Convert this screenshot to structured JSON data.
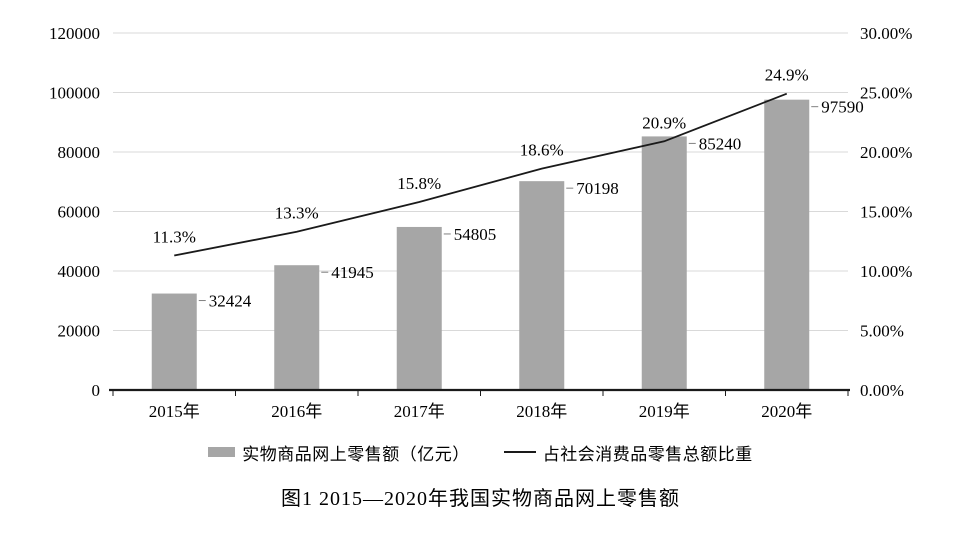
{
  "figure": {
    "caption": "图1  2015—2020年我国实物商品网上零售额"
  },
  "legend": [
    {
      "swatch": "bar-swatch",
      "label": "实物商品网上零售额（亿元）"
    },
    {
      "swatch": "line-swatch",
      "label": "占社会消费品零售总额比重"
    }
  ],
  "colors": {
    "bar": "#a6a6a6",
    "line": "#1a1a1a",
    "grid": "#d9d9d9",
    "axis": "#1a1a1a",
    "leader": "#808080",
    "text": "#000000",
    "background": "#ffffff"
  },
  "chart_data": {
    "type": "bar",
    "combo": "bar+line dual axis",
    "title": "图1  2015—2020年我国实物商品网上零售额",
    "categories": [
      "2015年",
      "2016年",
      "2017年",
      "2018年",
      "2019年",
      "2020年"
    ],
    "series": [
      {
        "name": "实物商品网上零售额（亿元）",
        "type": "bar",
        "axis": "left",
        "values": [
          32424,
          41945,
          54805,
          70198,
          85240,
          97590
        ]
      },
      {
        "name": "占社会消费品零售总额比重",
        "type": "line",
        "axis": "right",
        "values": [
          11.3,
          13.3,
          15.8,
          18.6,
          20.9,
          24.9
        ]
      }
    ],
    "data_labels": {
      "bar": [
        "32424",
        "41945",
        "54805",
        "70198",
        "85240",
        "97590"
      ],
      "line": [
        "11.3%",
        "13.3%",
        "15.8%",
        "18.6%",
        "20.9%",
        "24.9%"
      ]
    },
    "left_axis": {
      "min": 0,
      "max": 120000,
      "step": 20000,
      "tick_labels": [
        "0",
        "20000",
        "40000",
        "60000",
        "80000",
        "100000",
        "120000"
      ]
    },
    "right_axis": {
      "min": 0,
      "max": 30,
      "step": 5,
      "tick_labels": [
        "0.00%",
        "5.00%",
        "10.00%",
        "15.00%",
        "20.00%",
        "25.00%",
        "30.00%"
      ]
    },
    "grid": true,
    "legend_position": "bottom",
    "xlabel": "",
    "ylabel": ""
  }
}
